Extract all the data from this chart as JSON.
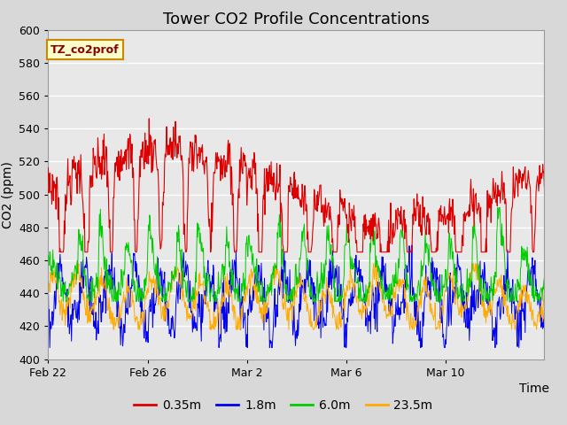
{
  "title": "Tower CO2 Profile Concentrations",
  "xlabel": "Time",
  "ylabel": "CO2 (ppm)",
  "ylim": [
    400,
    600
  ],
  "yticks": [
    400,
    420,
    440,
    460,
    480,
    500,
    520,
    540,
    560,
    580,
    600
  ],
  "xtick_labels": [
    "Feb 22",
    "Feb 26",
    "Mar 2",
    "Mar 6",
    "Mar 10"
  ],
  "xtick_positions": [
    0,
    192,
    384,
    576,
    768
  ],
  "n_points": 960,
  "colors": {
    "0.35m": "#dd0000",
    "1.8m": "#0000ee",
    "6.0m": "#00cc00",
    "23.5m": "#ffaa00"
  },
  "legend_label": "TZ_co2prof",
  "legend_box_color": "#ffffcc",
  "legend_box_edge": "#cc8800",
  "fig_bg_color": "#d8d8d8",
  "plot_bg_color": "#e8e8e8",
  "grid_color": "#ffffff",
  "title_fontsize": 13,
  "axis_fontsize": 10,
  "tick_fontsize": 9,
  "label_fontsize": 10
}
